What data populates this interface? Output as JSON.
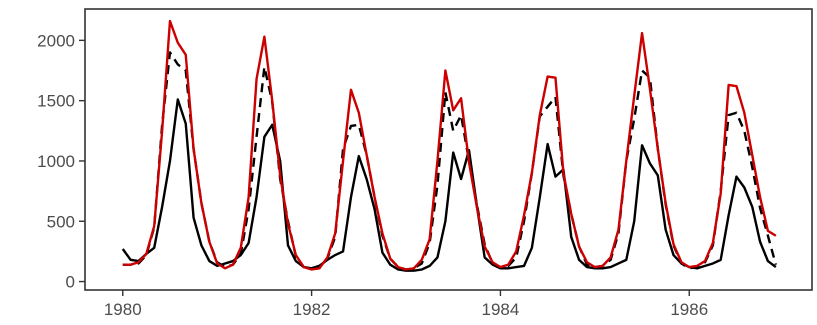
{
  "chart_data": {
    "type": "line",
    "title": "",
    "xlabel": "",
    "ylabel": "",
    "xlim": [
      1979.6,
      1987.3
    ],
    "ylim": [
      -70,
      2260
    ],
    "x_ticks": [
      1980,
      1982,
      1984,
      1986
    ],
    "x_tick_labels": [
      "1980",
      "1982",
      "1984",
      "1986"
    ],
    "y_ticks": [
      0,
      500,
      1000,
      1500,
      2000
    ],
    "y_tick_labels": [
      "0",
      "500",
      "1000",
      "1500",
      "2000"
    ],
    "grid": false,
    "legend": "none",
    "series": [
      {
        "style": "solid",
        "color": "#000000",
        "x": [
          1980.0,
          1980.083,
          1980.167,
          1980.25,
          1980.333,
          1980.417,
          1980.5,
          1980.583,
          1980.667,
          1980.75,
          1980.833,
          1980.917,
          1981.0,
          1981.083,
          1981.167,
          1981.25,
          1981.333,
          1981.417,
          1981.5,
          1981.583,
          1981.667,
          1981.75,
          1981.833,
          1981.917,
          1982.0,
          1982.083,
          1982.167,
          1982.25,
          1982.333,
          1982.417,
          1982.5,
          1982.583,
          1982.667,
          1982.75,
          1982.833,
          1982.917,
          1983.0,
          1983.083,
          1983.167,
          1983.25,
          1983.333,
          1983.417,
          1983.5,
          1983.583,
          1983.667,
          1983.75,
          1983.833,
          1983.917,
          1984.0,
          1984.083,
          1984.167,
          1984.25,
          1984.333,
          1984.417,
          1984.5,
          1984.583,
          1984.667,
          1984.75,
          1984.833,
          1984.917,
          1985.0,
          1985.083,
          1985.167,
          1985.25,
          1985.333,
          1985.417,
          1985.5,
          1985.583,
          1985.667,
          1985.75,
          1985.833,
          1985.917,
          1986.0,
          1986.083,
          1986.167,
          1986.25,
          1986.333,
          1986.417,
          1986.5,
          1986.583,
          1986.667,
          1986.75,
          1986.833,
          1986.917
        ],
        "values": [
          270,
          180,
          170,
          230,
          280,
          620,
          1000,
          1510,
          1310,
          530,
          300,
          170,
          130,
          150,
          170,
          220,
          320,
          700,
          1200,
          1300,
          1000,
          300,
          170,
          120,
          110,
          130,
          180,
          220,
          250,
          700,
          1040,
          850,
          600,
          240,
          140,
          100,
          90,
          90,
          100,
          130,
          200,
          500,
          1070,
          850,
          1090,
          630,
          200,
          140,
          110,
          110,
          120,
          130,
          280,
          700,
          1140,
          870,
          930,
          370,
          180,
          120,
          110,
          110,
          120,
          150,
          180,
          500,
          1130,
          980,
          880,
          430,
          220,
          150,
          120,
          110,
          130,
          150,
          180,
          550,
          870,
          780,
          620,
          330,
          170,
          120
        ]
      },
      {
        "style": "dashed",
        "color": "#000000",
        "x": [
          1980.0,
          1980.083,
          1980.167,
          1980.25,
          1980.333,
          1980.417,
          1980.5,
          1980.583,
          1980.667,
          1980.75,
          1980.833,
          1980.917,
          1981.0,
          1981.083,
          1981.167,
          1981.25,
          1981.333,
          1981.417,
          1981.5,
          1981.583,
          1981.667,
          1981.75,
          1981.833,
          1981.917,
          1982.0,
          1982.083,
          1982.167,
          1982.25,
          1982.333,
          1982.417,
          1982.5,
          1982.583,
          1982.667,
          1982.75,
          1982.833,
          1982.917,
          1983.0,
          1983.083,
          1983.167,
          1983.25,
          1983.333,
          1983.417,
          1983.5,
          1983.583,
          1983.667,
          1983.75,
          1983.833,
          1983.917,
          1984.0,
          1984.083,
          1984.167,
          1984.25,
          1984.333,
          1984.417,
          1984.5,
          1984.583,
          1984.667,
          1984.75,
          1984.833,
          1984.917,
          1985.0,
          1985.083,
          1985.167,
          1985.25,
          1985.333,
          1985.417,
          1985.5,
          1985.583,
          1985.667,
          1985.75,
          1985.833,
          1985.917,
          1986.0,
          1986.083,
          1986.167,
          1986.25,
          1986.333,
          1986.417,
          1986.5,
          1986.583,
          1986.667,
          1986.75,
          1986.833,
          1986.917
        ],
        "values": [
          140,
          140,
          150,
          220,
          450,
          1300,
          1900,
          1800,
          1750,
          1100,
          650,
          330,
          160,
          120,
          140,
          230,
          600,
          1200,
          1780,
          1490,
          850,
          500,
          210,
          120,
          110,
          130,
          190,
          370,
          1100,
          1290,
          1300,
          1050,
          700,
          380,
          190,
          120,
          100,
          110,
          150,
          320,
          800,
          1570,
          1250,
          1380,
          1000,
          640,
          310,
          150,
          120,
          130,
          200,
          500,
          900,
          1370,
          1450,
          1530,
          880,
          560,
          290,
          140,
          120,
          130,
          180,
          400,
          1000,
          1350,
          1750,
          1690,
          1100,
          640,
          300,
          150,
          110,
          120,
          160,
          300,
          750,
          1380,
          1400,
          1250,
          950,
          610,
          380,
          140
        ]
      },
      {
        "style": "solid",
        "color": "#cc0000",
        "x": [
          1980.0,
          1980.083,
          1980.167,
          1980.25,
          1980.333,
          1980.417,
          1980.5,
          1980.583,
          1980.667,
          1980.75,
          1980.833,
          1980.917,
          1981.0,
          1981.083,
          1981.167,
          1981.25,
          1981.333,
          1981.417,
          1981.5,
          1981.583,
          1981.667,
          1981.75,
          1981.833,
          1981.917,
          1982.0,
          1982.083,
          1982.167,
          1982.25,
          1982.333,
          1982.417,
          1982.5,
          1982.583,
          1982.667,
          1982.75,
          1982.833,
          1982.917,
          1983.0,
          1983.083,
          1983.167,
          1983.25,
          1983.333,
          1983.417,
          1983.5,
          1983.583,
          1983.667,
          1983.75,
          1983.833,
          1983.917,
          1984.0,
          1984.083,
          1984.167,
          1984.25,
          1984.333,
          1984.417,
          1984.5,
          1984.583,
          1984.667,
          1984.75,
          1984.833,
          1984.917,
          1985.0,
          1985.083,
          1985.167,
          1985.25,
          1985.333,
          1985.417,
          1985.5,
          1985.583,
          1985.667,
          1985.75,
          1985.833,
          1985.917,
          1986.0,
          1986.083,
          1986.167,
          1986.25,
          1986.333,
          1986.417,
          1986.5,
          1986.583,
          1986.667,
          1986.75,
          1986.833,
          1986.917
        ],
        "values": [
          140,
          140,
          160,
          230,
          460,
          1250,
          2160,
          1980,
          1880,
          1100,
          650,
          330,
          150,
          110,
          140,
          280,
          700,
          1680,
          2030,
          1500,
          880,
          480,
          220,
          120,
          100,
          110,
          200,
          400,
          1000,
          1590,
          1400,
          1050,
          700,
          400,
          190,
          120,
          100,
          110,
          180,
          350,
          1000,
          1750,
          1420,
          1520,
          990,
          620,
          290,
          160,
          120,
          140,
          250,
          550,
          900,
          1380,
          1700,
          1690,
          900,
          560,
          290,
          160,
          120,
          130,
          200,
          430,
          1000,
          1540,
          2060,
          1600,
          1100,
          650,
          310,
          160,
          120,
          130,
          170,
          320,
          730,
          1630,
          1620,
          1400,
          1050,
          700,
          420,
          380
        ]
      }
    ]
  }
}
